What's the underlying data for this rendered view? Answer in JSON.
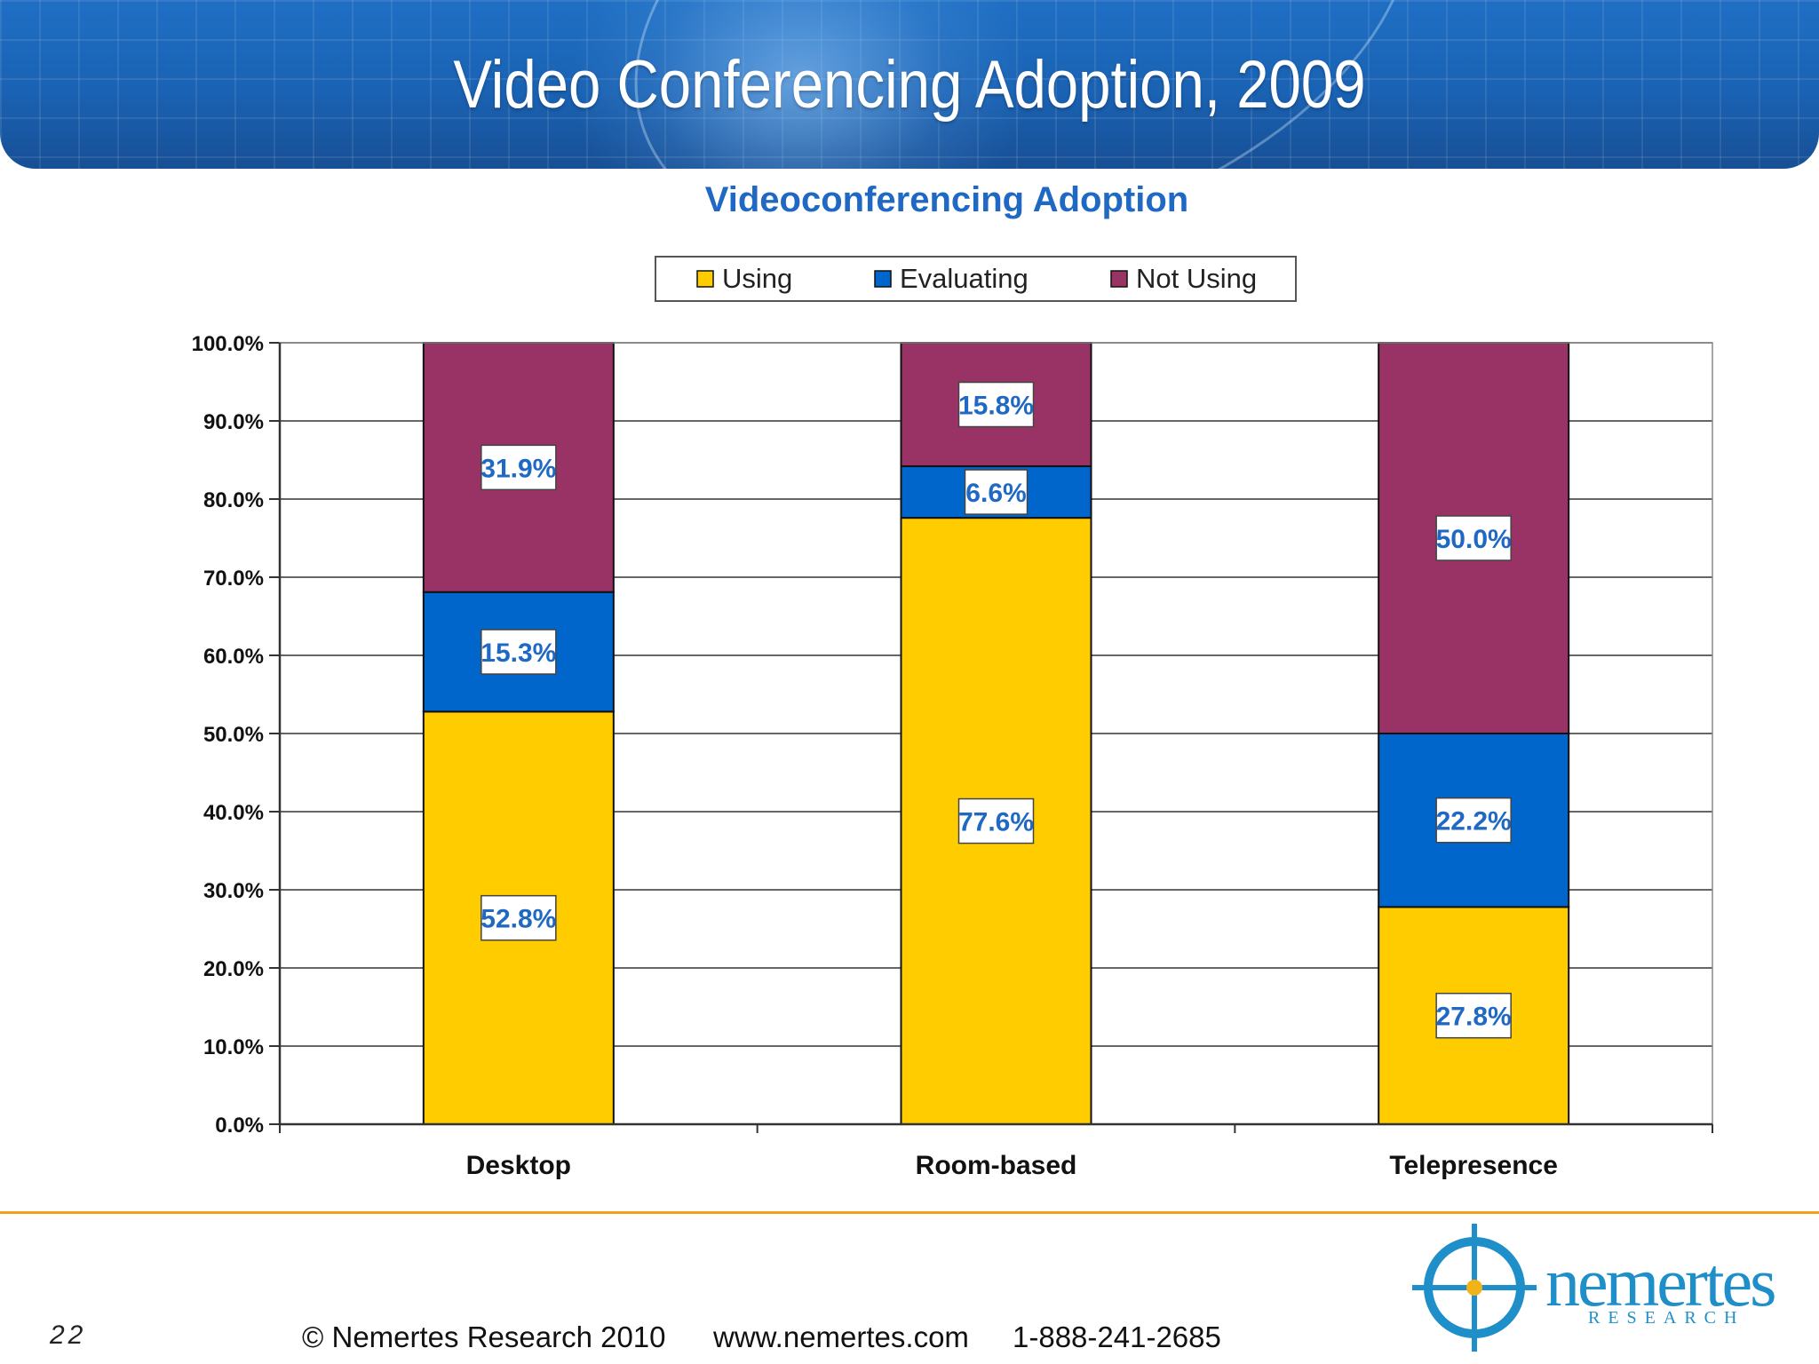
{
  "slide": {
    "title": "Video Conferencing Adoption, 2009",
    "page_number": "22",
    "copyright": "© Nemertes Research 2010",
    "website": "www.nemertes.com",
    "phone": "1-888-241-2685"
  },
  "logo": {
    "name": "nemertes",
    "tagline": "RESEARCH"
  },
  "colors": {
    "header": "#1a62b3",
    "Using": "#ffcc00",
    "Evaluating": "#0066cc",
    "Not Using": "#993366",
    "label_text": "#1f68c4",
    "chart_title": "#1f68c4",
    "footer_rule": "#f2a21a"
  },
  "chart_data": {
    "type": "bar",
    "stacked": true,
    "title": "Videoconferencing Adoption",
    "categories": [
      "Desktop",
      "Room-based",
      "Telepresence"
    ],
    "series": [
      {
        "name": "Using",
        "values": [
          52.8,
          77.6,
          27.8
        ],
        "labels": [
          "52.8%",
          "77.6%",
          "27.8%"
        ]
      },
      {
        "name": "Evaluating",
        "values": [
          15.3,
          6.6,
          22.2
        ],
        "labels": [
          "15.3%",
          "6.6%",
          "22.2%"
        ]
      },
      {
        "name": "Not Using",
        "values": [
          31.9,
          15.8,
          50.0
        ],
        "labels": [
          "31.9%",
          "15.8%",
          "50.0%"
        ]
      }
    ],
    "ylim": [
      0,
      100
    ],
    "yticks": [
      0,
      10,
      20,
      30,
      40,
      50,
      60,
      70,
      80,
      90,
      100
    ],
    "ytick_labels": [
      "0.0%",
      "10.0%",
      "20.0%",
      "30.0%",
      "40.0%",
      "50.0%",
      "60.0%",
      "70.0%",
      "80.0%",
      "90.0%",
      "100.0%"
    ],
    "grid": true,
    "legend": "top-center"
  }
}
